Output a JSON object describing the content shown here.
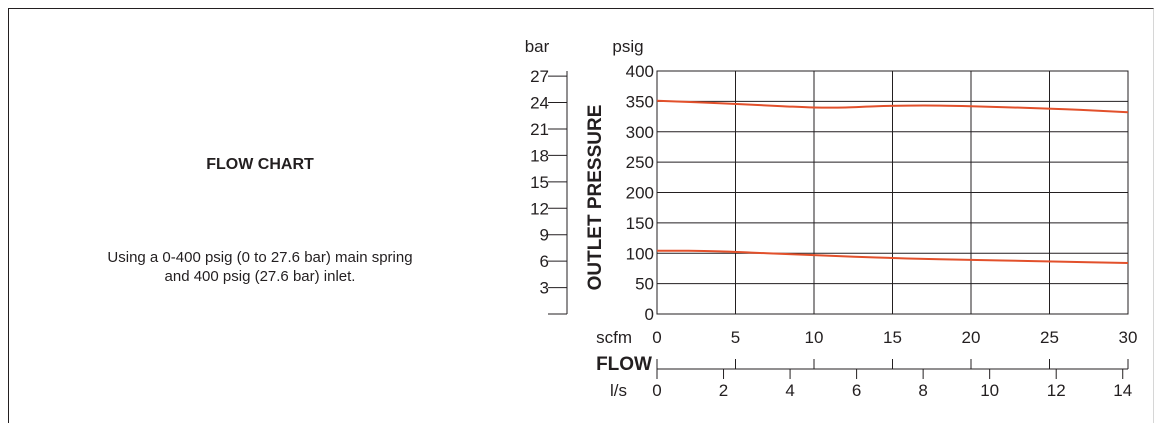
{
  "left_panel": {
    "title": "FLOW CHART",
    "description_line1": "Using a 0-400 psig (0 to 27.6 bar)  main spring",
    "description_line2": "and 400 psig (27.6 bar) inlet."
  },
  "chart_data": {
    "type": "line",
    "y_primary": {
      "label": "OUTLET PRESSURE",
      "unit": "psig",
      "ticks": [
        0,
        50,
        100,
        150,
        200,
        250,
        300,
        350,
        400
      ],
      "range": [
        0,
        400
      ]
    },
    "y_secondary": {
      "unit": "bar",
      "ticks": [
        3,
        6,
        9,
        12,
        15,
        18,
        21,
        24,
        27
      ],
      "conversion_psi_per_bar": 14.5038
    },
    "x_primary": {
      "unit": "scfm",
      "ticks": [
        0,
        5,
        10,
        15,
        20,
        25,
        30
      ],
      "range": [
        0,
        30
      ]
    },
    "x_secondary": {
      "unit": "l/s",
      "ticks": [
        0,
        2,
        4,
        6,
        8,
        10,
        12,
        14
      ],
      "conversion_scfm_per_lps": 2.1189
    },
    "x_title": "FLOW",
    "grid": true,
    "line_color": "#e2502b",
    "series": [
      {
        "x": [
          0,
          4,
          8,
          10,
          12,
          14,
          16,
          18,
          20,
          24,
          27,
          30
        ],
        "values": [
          351,
          347,
          342,
          340,
          340,
          342,
          343,
          343,
          342,
          339,
          336,
          332
        ]
      },
      {
        "x": [
          0,
          2,
          4,
          6,
          8,
          10,
          14,
          18,
          22,
          26,
          30
        ],
        "values": [
          104,
          104,
          103,
          101,
          99,
          97,
          93,
          90,
          88,
          86,
          84
        ]
      }
    ]
  }
}
